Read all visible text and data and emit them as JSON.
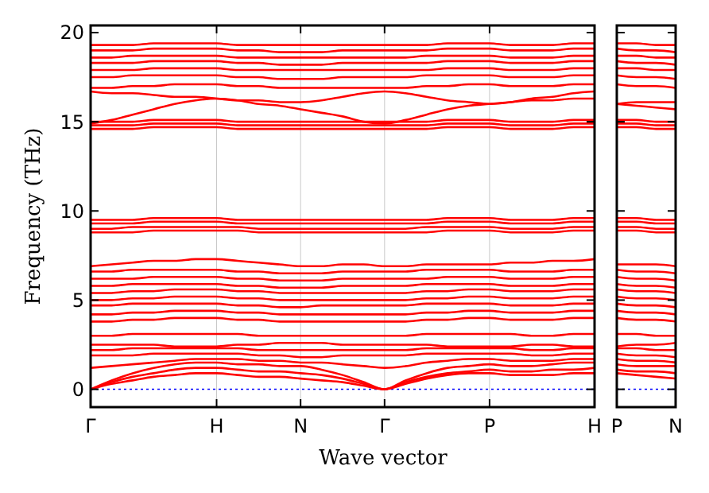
{
  "chart_data": [
    {
      "type": "line",
      "xlabel": "Wave vector",
      "ylabel": "Frequency (THz)",
      "categories": [
        "Γ",
        null,
        null,
        null,
        null,
        null,
        "H",
        null,
        null,
        null,
        "N",
        null,
        null,
        null,
        "Γ",
        null,
        null,
        null,
        null,
        "P",
        null,
        null,
        null,
        null,
        "H"
      ],
      "ylim": [
        -1,
        20.4
      ],
      "yticks": [
        0,
        5,
        10,
        15,
        20
      ],
      "grid": "x",
      "line_style": "solid",
      "ref_lines": [
        {
          "axis": "y",
          "value": 0,
          "color": "#0000ff",
          "line_style": "dotted"
        }
      ],
      "series": [
        {
          "color": "#ff0000",
          "values": [
            0,
            0.3,
            0.5,
            0.7,
            0.8,
            0.9,
            0.9,
            0.8,
            0.7,
            0.7,
            0.6,
            0.5,
            0.4,
            0.2,
            0,
            0.3,
            0.6,
            0.8,
            0.9,
            0.9,
            0.8,
            0.8,
            0.8,
            0.9,
            0.9
          ]
        },
        {
          "color": "#ff0000",
          "values": [
            0,
            0.4,
            0.7,
            0.9,
            1.1,
            1.2,
            1.2,
            1.1,
            1.0,
            1.0,
            0.9,
            0.8,
            0.6,
            0.3,
            0,
            0.4,
            0.7,
            0.9,
            1.0,
            1.1,
            1.0,
            1.0,
            1.1,
            1.1,
            1.2
          ]
        },
        {
          "color": "#ff0000",
          "values": [
            0,
            0.5,
            0.9,
            1.2,
            1.4,
            1.5,
            1.5,
            1.4,
            1.4,
            1.3,
            1.3,
            1.1,
            0.8,
            0.4,
            0,
            0.5,
            0.9,
            1.2,
            1.3,
            1.4,
            1.3,
            1.3,
            1.4,
            1.5,
            1.5
          ]
        },
        {
          "color": "#ff0000",
          "values": [
            1.2,
            1.3,
            1.4,
            1.5,
            1.6,
            1.7,
            1.7,
            1.7,
            1.6,
            1.6,
            1.5,
            1.5,
            1.4,
            1.3,
            1.2,
            1.3,
            1.5,
            1.6,
            1.7,
            1.7,
            1.6,
            1.6,
            1.6,
            1.7,
            1.7
          ]
        },
        {
          "color": "#ff0000",
          "values": [
            1.9,
            1.9,
            1.9,
            2.0,
            2.0,
            2.0,
            2.0,
            2.0,
            1.9,
            1.9,
            1.8,
            1.8,
            1.9,
            1.9,
            1.9,
            1.9,
            2.0,
            2.0,
            2.0,
            2.0,
            2.0,
            1.9,
            1.9,
            2.0,
            2.0
          ]
        },
        {
          "color": "#ff0000",
          "values": [
            2.2,
            2.2,
            2.3,
            2.3,
            2.3,
            2.3,
            2.3,
            2.3,
            2.2,
            2.2,
            2.2,
            2.2,
            2.2,
            2.2,
            2.2,
            2.2,
            2.3,
            2.3,
            2.3,
            2.3,
            2.3,
            2.2,
            2.2,
            2.3,
            2.3
          ]
        },
        {
          "color": "#ff0000",
          "values": [
            2.5,
            2.5,
            2.5,
            2.5,
            2.4,
            2.4,
            2.4,
            2.5,
            2.5,
            2.6,
            2.6,
            2.6,
            2.5,
            2.5,
            2.5,
            2.5,
            2.5,
            2.4,
            2.4,
            2.4,
            2.4,
            2.5,
            2.5,
            2.4,
            2.4
          ]
        },
        {
          "color": "#ff0000",
          "values": [
            3.0,
            3.0,
            3.1,
            3.1,
            3.1,
            3.1,
            3.1,
            3.1,
            3.0,
            3.0,
            3.0,
            3.0,
            3.0,
            3.0,
            3.0,
            3.0,
            3.1,
            3.1,
            3.1,
            3.1,
            3.1,
            3.0,
            3.0,
            3.1,
            3.1
          ]
        },
        {
          "color": "#ff0000",
          "values": [
            3.8,
            3.8,
            3.9,
            3.9,
            4.0,
            4.0,
            4.0,
            3.9,
            3.9,
            3.8,
            3.8,
            3.8,
            3.8,
            3.8,
            3.8,
            3.8,
            3.9,
            3.9,
            4.0,
            4.0,
            3.9,
            3.9,
            3.9,
            4.0,
            4.0
          ]
        },
        {
          "color": "#ff0000",
          "values": [
            4.2,
            4.2,
            4.3,
            4.3,
            4.4,
            4.4,
            4.4,
            4.3,
            4.3,
            4.2,
            4.2,
            4.2,
            4.2,
            4.2,
            4.2,
            4.2,
            4.3,
            4.3,
            4.4,
            4.4,
            4.3,
            4.3,
            4.3,
            4.4,
            4.4
          ]
        },
        {
          "color": "#ff0000",
          "values": [
            4.7,
            4.7,
            4.8,
            4.8,
            4.8,
            4.8,
            4.8,
            4.7,
            4.7,
            4.6,
            4.6,
            4.7,
            4.7,
            4.7,
            4.7,
            4.7,
            4.8,
            4.8,
            4.8,
            4.8,
            4.7,
            4.7,
            4.7,
            4.8,
            4.8
          ]
        },
        {
          "color": "#ff0000",
          "values": [
            5.0,
            5.0,
            5.1,
            5.1,
            5.2,
            5.2,
            5.2,
            5.1,
            5.1,
            5.0,
            5.0,
            5.0,
            5.0,
            5.0,
            5.0,
            5.0,
            5.1,
            5.1,
            5.2,
            5.2,
            5.1,
            5.1,
            5.1,
            5.2,
            5.2
          ]
        },
        {
          "color": "#ff0000",
          "values": [
            5.4,
            5.4,
            5.5,
            5.5,
            5.6,
            5.6,
            5.6,
            5.5,
            5.5,
            5.4,
            5.4,
            5.4,
            5.4,
            5.4,
            5.4,
            5.4,
            5.5,
            5.5,
            5.6,
            5.6,
            5.5,
            5.5,
            5.5,
            5.6,
            5.6
          ]
        },
        {
          "color": "#ff0000",
          "values": [
            5.8,
            5.8,
            5.9,
            5.9,
            5.9,
            5.9,
            5.9,
            5.8,
            5.8,
            5.7,
            5.7,
            5.7,
            5.8,
            5.8,
            5.8,
            5.8,
            5.9,
            5.9,
            5.9,
            5.9,
            5.8,
            5.8,
            5.8,
            5.9,
            5.9
          ]
        },
        {
          "color": "#ff0000",
          "values": [
            6.2,
            6.2,
            6.2,
            6.3,
            6.3,
            6.3,
            6.3,
            6.2,
            6.2,
            6.1,
            6.1,
            6.1,
            6.2,
            6.2,
            6.2,
            6.2,
            6.2,
            6.3,
            6.3,
            6.3,
            6.2,
            6.2,
            6.2,
            6.3,
            6.3
          ]
        },
        {
          "color": "#ff0000",
          "values": [
            6.6,
            6.6,
            6.7,
            6.7,
            6.7,
            6.7,
            6.7,
            6.6,
            6.6,
            6.5,
            6.5,
            6.5,
            6.6,
            6.6,
            6.6,
            6.6,
            6.7,
            6.7,
            6.7,
            6.7,
            6.6,
            6.6,
            6.6,
            6.7,
            6.7
          ]
        },
        {
          "color": "#ff0000",
          "values": [
            6.9,
            7.0,
            7.1,
            7.2,
            7.2,
            7.3,
            7.3,
            7.2,
            7.1,
            7.0,
            6.9,
            6.9,
            7.0,
            7.0,
            6.9,
            6.9,
            7.0,
            7.0,
            7.0,
            7.0,
            7.1,
            7.1,
            7.2,
            7.2,
            7.3
          ]
        },
        {
          "color": "#ff0000",
          "values": [
            8.8,
            8.8,
            8.8,
            8.9,
            8.9,
            8.9,
            8.9,
            8.9,
            8.8,
            8.8,
            8.8,
            8.8,
            8.8,
            8.8,
            8.8,
            8.8,
            8.8,
            8.9,
            8.9,
            8.9,
            8.8,
            8.8,
            8.8,
            8.9,
            8.9
          ]
        },
        {
          "color": "#ff0000",
          "values": [
            9.0,
            9.0,
            9.1,
            9.1,
            9.1,
            9.1,
            9.1,
            9.1,
            9.0,
            9.0,
            9.0,
            9.0,
            9.0,
            9.0,
            9.0,
            9.0,
            9.1,
            9.1,
            9.1,
            9.1,
            9.0,
            9.0,
            9.0,
            9.1,
            9.1
          ]
        },
        {
          "color": "#ff0000",
          "values": [
            9.3,
            9.3,
            9.3,
            9.4,
            9.4,
            9.4,
            9.4,
            9.3,
            9.3,
            9.3,
            9.3,
            9.3,
            9.3,
            9.3,
            9.3,
            9.3,
            9.3,
            9.4,
            9.4,
            9.4,
            9.3,
            9.3,
            9.3,
            9.4,
            9.4
          ]
        },
        {
          "color": "#ff0000",
          "values": [
            9.5,
            9.5,
            9.5,
            9.6,
            9.6,
            9.6,
            9.6,
            9.5,
            9.5,
            9.5,
            9.5,
            9.5,
            9.5,
            9.5,
            9.5,
            9.5,
            9.5,
            9.6,
            9.6,
            9.6,
            9.5,
            9.5,
            9.5,
            9.6,
            9.6
          ]
        },
        {
          "color": "#ff0000",
          "values": [
            14.6,
            14.6,
            14.6,
            14.7,
            14.7,
            14.7,
            14.7,
            14.6,
            14.6,
            14.6,
            14.6,
            14.6,
            14.6,
            14.6,
            14.6,
            14.6,
            14.6,
            14.7,
            14.7,
            14.7,
            14.6,
            14.6,
            14.6,
            14.7,
            14.7
          ]
        },
        {
          "color": "#ff0000",
          "values": [
            14.8,
            14.8,
            14.8,
            14.9,
            14.9,
            14.9,
            14.9,
            14.8,
            14.8,
            14.8,
            14.8,
            14.8,
            14.8,
            14.8,
            14.8,
            14.8,
            14.8,
            14.9,
            14.9,
            14.9,
            14.8,
            14.8,
            14.8,
            14.9,
            14.9
          ]
        },
        {
          "color": "#ff0000",
          "values": [
            15.0,
            15.0,
            15.0,
            15.1,
            15.1,
            15.1,
            15.1,
            15.0,
            15.0,
            15.0,
            15.0,
            15.0,
            15.0,
            15.0,
            15.0,
            15.0,
            15.0,
            15.1,
            15.1,
            15.1,
            15.0,
            15.0,
            15.0,
            15.1,
            15.1
          ]
        },
        {
          "color": "#ff0000",
          "values": [
            14.9,
            15.1,
            15.4,
            15.7,
            16.0,
            16.2,
            16.3,
            16.2,
            16.0,
            15.9,
            15.7,
            15.5,
            15.3,
            15.0,
            14.9,
            15.1,
            15.4,
            15.7,
            15.9,
            16.0,
            16.1,
            16.2,
            16.2,
            16.3,
            16.3
          ]
        },
        {
          "color": "#ff0000",
          "values": [
            16.7,
            16.6,
            16.6,
            16.5,
            16.4,
            16.4,
            16.3,
            16.2,
            16.2,
            16.1,
            16.1,
            16.2,
            16.4,
            16.6,
            16.7,
            16.6,
            16.4,
            16.2,
            16.1,
            16.0,
            16.1,
            16.3,
            16.4,
            16.6,
            16.7
          ]
        },
        {
          "color": "#ff0000",
          "values": [
            16.9,
            16.9,
            17.0,
            17.0,
            17.1,
            17.1,
            17.1,
            17.0,
            17.0,
            16.9,
            16.9,
            16.9,
            16.9,
            16.9,
            16.9,
            16.9,
            17.0,
            17.0,
            17.1,
            17.1,
            17.0,
            17.0,
            17.0,
            17.1,
            17.1
          ]
        },
        {
          "color": "#ff0000",
          "values": [
            17.5,
            17.5,
            17.6,
            17.6,
            17.6,
            17.6,
            17.6,
            17.5,
            17.5,
            17.4,
            17.4,
            17.4,
            17.5,
            17.5,
            17.5,
            17.5,
            17.6,
            17.6,
            17.6,
            17.6,
            17.5,
            17.5,
            17.5,
            17.6,
            17.6
          ]
        },
        {
          "color": "#ff0000",
          "values": [
            17.9,
            17.9,
            17.9,
            18.0,
            18.0,
            18.0,
            18.0,
            17.9,
            17.9,
            17.9,
            17.9,
            17.9,
            17.9,
            17.9,
            17.9,
            17.9,
            17.9,
            18.0,
            18.0,
            18.0,
            17.9,
            17.9,
            17.9,
            18.0,
            18.0
          ]
        },
        {
          "color": "#ff0000",
          "values": [
            18.3,
            18.3,
            18.3,
            18.4,
            18.4,
            18.4,
            18.4,
            18.3,
            18.3,
            18.2,
            18.2,
            18.2,
            18.3,
            18.3,
            18.3,
            18.3,
            18.3,
            18.4,
            18.4,
            18.4,
            18.3,
            18.3,
            18.3,
            18.4,
            18.4
          ]
        },
        {
          "color": "#ff0000",
          "values": [
            18.6,
            18.6,
            18.7,
            18.7,
            18.7,
            18.7,
            18.7,
            18.6,
            18.6,
            18.6,
            18.6,
            18.6,
            18.6,
            18.6,
            18.6,
            18.6,
            18.7,
            18.7,
            18.7,
            18.7,
            18.6,
            18.6,
            18.6,
            18.7,
            18.7
          ]
        },
        {
          "color": "#ff0000",
          "values": [
            19.0,
            19.0,
            19.0,
            19.1,
            19.1,
            19.1,
            19.1,
            19.0,
            19.0,
            18.9,
            18.9,
            18.9,
            19.0,
            19.0,
            19.0,
            19.0,
            19.0,
            19.1,
            19.1,
            19.1,
            19.0,
            19.0,
            19.0,
            19.1,
            19.1
          ]
        },
        {
          "color": "#ff0000",
          "values": [
            19.3,
            19.3,
            19.3,
            19.4,
            19.4,
            19.4,
            19.4,
            19.3,
            19.3,
            19.3,
            19.3,
            19.3,
            19.3,
            19.3,
            19.3,
            19.3,
            19.3,
            19.4,
            19.4,
            19.4,
            19.3,
            19.3,
            19.3,
            19.4,
            19.4
          ]
        }
      ]
    },
    {
      "type": "line",
      "categories": [
        "P",
        null,
        null,
        "N"
      ],
      "ylim": [
        -1,
        20.4
      ],
      "yticks": [
        0,
        5,
        10,
        15,
        20
      ],
      "tick_labels": "x",
      "line_style": "solid",
      "ref_lines": [
        {
          "axis": "y",
          "value": 0,
          "color": "#0000ff",
          "line_style": "dotted"
        }
      ],
      "series": [
        {
          "color": "#ff0000",
          "values": [
            0.9,
            0.8,
            0.7,
            0.6
          ]
        },
        {
          "color": "#ff0000",
          "values": [
            1.1,
            1.0,
            1.0,
            0.9
          ]
        },
        {
          "color": "#ff0000",
          "values": [
            1.4,
            1.3,
            1.3,
            1.3
          ]
        },
        {
          "color": "#ff0000",
          "values": [
            1.7,
            1.6,
            1.6,
            1.5
          ]
        },
        {
          "color": "#ff0000",
          "values": [
            2.0,
            1.9,
            1.9,
            1.8
          ]
        },
        {
          "color": "#ff0000",
          "values": [
            2.3,
            2.3,
            2.2,
            2.2
          ]
        },
        {
          "color": "#ff0000",
          "values": [
            2.4,
            2.5,
            2.5,
            2.6
          ]
        },
        {
          "color": "#ff0000",
          "values": [
            3.1,
            3.1,
            3.0,
            3.0
          ]
        },
        {
          "color": "#ff0000",
          "values": [
            4.0,
            3.9,
            3.9,
            3.8
          ]
        },
        {
          "color": "#ff0000",
          "values": [
            4.4,
            4.3,
            4.3,
            4.2
          ]
        },
        {
          "color": "#ff0000",
          "values": [
            4.8,
            4.7,
            4.7,
            4.6
          ]
        },
        {
          "color": "#ff0000",
          "values": [
            5.2,
            5.1,
            5.1,
            5.0
          ]
        },
        {
          "color": "#ff0000",
          "values": [
            5.6,
            5.5,
            5.5,
            5.4
          ]
        },
        {
          "color": "#ff0000",
          "values": [
            5.9,
            5.8,
            5.8,
            5.7
          ]
        },
        {
          "color": "#ff0000",
          "values": [
            6.3,
            6.2,
            6.2,
            6.1
          ]
        },
        {
          "color": "#ff0000",
          "values": [
            6.7,
            6.6,
            6.6,
            6.5
          ]
        },
        {
          "color": "#ff0000",
          "values": [
            7.0,
            7.0,
            7.0,
            6.9
          ]
        },
        {
          "color": "#ff0000",
          "values": [
            8.9,
            8.9,
            8.8,
            8.8
          ]
        },
        {
          "color": "#ff0000",
          "values": [
            9.1,
            9.1,
            9.0,
            9.0
          ]
        },
        {
          "color": "#ff0000",
          "values": [
            9.4,
            9.4,
            9.3,
            9.3
          ]
        },
        {
          "color": "#ff0000",
          "values": [
            9.6,
            9.6,
            9.5,
            9.5
          ]
        },
        {
          "color": "#ff0000",
          "values": [
            14.7,
            14.7,
            14.6,
            14.6
          ]
        },
        {
          "color": "#ff0000",
          "values": [
            14.9,
            14.9,
            14.8,
            14.8
          ]
        },
        {
          "color": "#ff0000",
          "values": [
            15.1,
            15.1,
            15.0,
            15.0
          ]
        },
        {
          "color": "#ff0000",
          "values": [
            16.0,
            15.9,
            15.8,
            15.7
          ]
        },
        {
          "color": "#ff0000",
          "values": [
            16.0,
            16.1,
            16.1,
            16.1
          ]
        },
        {
          "color": "#ff0000",
          "values": [
            17.1,
            17.0,
            17.0,
            16.9
          ]
        },
        {
          "color": "#ff0000",
          "values": [
            17.6,
            17.5,
            17.5,
            17.4
          ]
        },
        {
          "color": "#ff0000",
          "values": [
            18.0,
            18.0,
            17.9,
            17.9
          ]
        },
        {
          "color": "#ff0000",
          "values": [
            18.4,
            18.3,
            18.3,
            18.2
          ]
        },
        {
          "color": "#ff0000",
          "values": [
            18.7,
            18.7,
            18.6,
            18.6
          ]
        },
        {
          "color": "#ff0000",
          "values": [
            19.1,
            19.0,
            19.0,
            18.9
          ]
        },
        {
          "color": "#ff0000",
          "values": [
            19.4,
            19.4,
            19.3,
            19.3
          ]
        }
      ]
    }
  ]
}
